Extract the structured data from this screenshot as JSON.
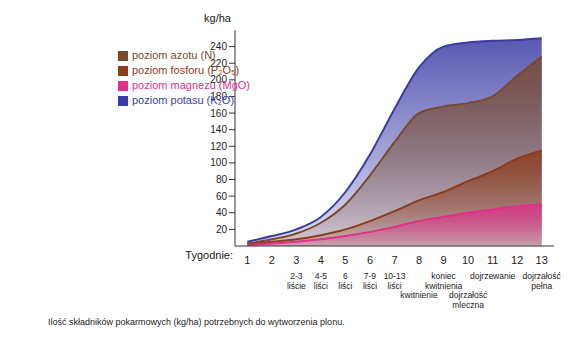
{
  "chart_data": {
    "type": "area",
    "y_label": "kg/ha",
    "x_label": "Tygodnie:",
    "caption": "Ilość składników pokarmowych (kg/ha) potrzebnych do wytworzenia plonu.",
    "x": [
      1,
      2,
      3,
      4,
      5,
      6,
      7,
      8,
      9,
      10,
      11,
      12,
      13
    ],
    "stages": [
      null,
      null,
      "2-3 liście",
      "4-5 liści",
      "6 liści",
      "7-9 liści",
      "10-13 liści",
      "kwitnienie",
      "koniec kwitnienia",
      "dojrzałość mleczna",
      "dojrzewanie",
      null,
      "dojrzałość pełna"
    ],
    "series": [
      {
        "name": "poziom potasu (K₂O)",
        "color": "#3b3ba6",
        "values": [
          5,
          12,
          20,
          35,
          65,
          110,
          165,
          215,
          240,
          245,
          247,
          248,
          250
        ]
      },
      {
        "name": "poziom azotu (N)",
        "color": "#7a4a2c",
        "values": [
          3,
          8,
          15,
          28,
          50,
          85,
          125,
          160,
          168,
          172,
          180,
          205,
          228
        ]
      },
      {
        "name": "poziom fosforu (P₂O₅)",
        "color": "#8e3b1a",
        "values": [
          2,
          5,
          8,
          13,
          20,
          30,
          42,
          55,
          65,
          78,
          90,
          105,
          115
        ]
      },
      {
        "name": "poziom magnezu (MgO)",
        "color": "#e0308a",
        "values": [
          1,
          3,
          5,
          8,
          12,
          17,
          23,
          30,
          35,
          40,
          44,
          48,
          50
        ]
      }
    ],
    "xlim": [
      0.5,
      13.5
    ],
    "xticks": [
      1,
      2,
      3,
      4,
      5,
      6,
      7,
      8,
      9,
      10,
      11,
      12,
      13
    ],
    "ylim": [
      0,
      260
    ],
    "yticks": [
      20,
      40,
      60,
      80,
      100,
      120,
      140,
      160,
      180,
      200,
      220,
      240
    ],
    "legend": "upper left"
  }
}
